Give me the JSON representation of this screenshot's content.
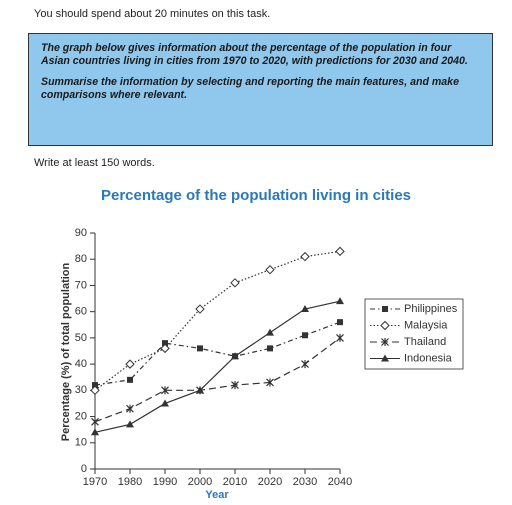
{
  "header": {
    "time_note": "You should spend about 20 minutes on this task."
  },
  "task_box": {
    "paragraphs": [
      "The graph below gives information about the percentage of the population in four Asian countries living in cities from 1970 to 2020, with predictions for 2030 and 2040.",
      "Summarise the information by selecting and reporting the main features, and make comparisons where relevant."
    ]
  },
  "instruction": "Write at least 150 words.",
  "chart_data": {
    "type": "line",
    "title": "Percentage of the population living in cities",
    "x_label": "Year",
    "y_label": "Percentage (%) of total population",
    "x": [
      1970,
      1980,
      1990,
      2000,
      2010,
      2020,
      2030,
      2040
    ],
    "xlim": [
      1970,
      2040
    ],
    "xticks": [
      1970,
      1980,
      1990,
      2000,
      2010,
      2020,
      2030,
      2040
    ],
    "ylim": [
      0,
      90
    ],
    "yticks": [
      0,
      10,
      20,
      30,
      40,
      50,
      60,
      70,
      80,
      90
    ],
    "series": [
      {
        "name": "Philippines",
        "color": "#333333",
        "marker": "square",
        "dash": "dashdot",
        "values": [
          32,
          34,
          48,
          46,
          43,
          46,
          51,
          56
        ]
      },
      {
        "name": "Malaysia",
        "color": "#333333",
        "marker": "diamond",
        "dash": "dotted",
        "values": [
          30,
          40,
          46,
          61,
          71,
          76,
          81,
          83
        ]
      },
      {
        "name": "Thailand",
        "color": "#333333",
        "marker": "star",
        "dash": "dashed",
        "values": [
          18,
          23,
          30,
          30,
          32,
          33,
          40,
          50
        ]
      },
      {
        "name": "Indonesia",
        "color": "#333333",
        "marker": "triangle",
        "dash": "solid",
        "values": [
          14,
          17,
          25,
          30,
          43,
          52,
          61,
          64
        ]
      }
    ]
  }
}
